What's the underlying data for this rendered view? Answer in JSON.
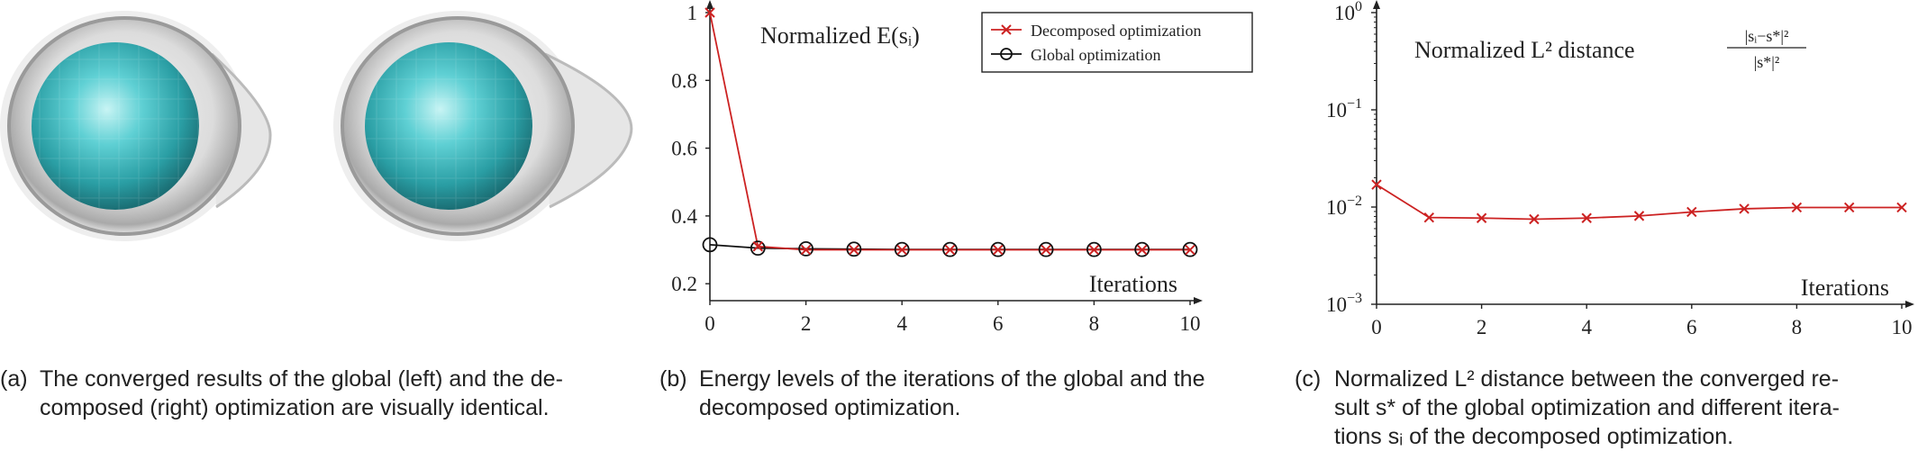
{
  "captions": {
    "a": {
      "label": "(a)",
      "lines": [
        "The converged results of the global (left) and the de-",
        "composed (right) optimization are visually identical."
      ]
    },
    "b": {
      "label": "(b)",
      "lines": [
        "Energy levels of the iterations of the global and the",
        "decomposed optimization."
      ]
    },
    "c": {
      "label": "(c)",
      "lines": [
        "Normalized L² distance between the converged re-",
        "sult s* of the global optimization and different itera-",
        "tions sᵢ of the decomposed optimization."
      ]
    }
  },
  "colors": {
    "decomposed": "#cc2222",
    "global": "#111111",
    "sphere": "#3fbfc4",
    "shell": "#d6d6d6"
  },
  "chart_data": [
    {
      "type": "line",
      "annotation": "Normalized E(sᵢ)",
      "xlabel": "Iterations",
      "x": [
        0,
        1,
        2,
        3,
        4,
        5,
        6,
        7,
        8,
        9,
        10
      ],
      "xticks": [
        "0",
        "2",
        "4",
        "6",
        "8",
        "10"
      ],
      "yticks": [
        "0.2",
        "0.4",
        "0.6",
        "0.8",
        "1"
      ],
      "ylim": [
        0.15,
        1.0
      ],
      "xlim": [
        0,
        10
      ],
      "legend": "top-right",
      "series": [
        {
          "name": "Decomposed optimization",
          "marker": "x",
          "values": [
            1.0,
            0.31,
            0.3,
            0.3,
            0.3,
            0.3,
            0.3,
            0.3,
            0.3,
            0.3,
            0.3
          ]
        },
        {
          "name": "Global optimization",
          "marker": "o",
          "values": [
            0.315,
            0.305,
            0.303,
            0.302,
            0.301,
            0.301,
            0.301,
            0.301,
            0.301,
            0.301,
            0.301
          ]
        }
      ]
    },
    {
      "type": "line",
      "annotation": "Normalized L² distance",
      "annotation_formula_num": "|sᵢ−s*|²",
      "annotation_formula_den": "|s*|²",
      "xlabel": "Iterations",
      "x": [
        0,
        1,
        2,
        3,
        4,
        5,
        6,
        7,
        8,
        9,
        10
      ],
      "xticks": [
        "0",
        "2",
        "4",
        "6",
        "8",
        "10"
      ],
      "yscale": "log",
      "ylim": [
        0.001,
        1
      ],
      "yticks": [
        {
          "base": "10",
          "exp": "0"
        },
        {
          "base": "10",
          "exp": "−1"
        },
        {
          "base": "10",
          "exp": "−2"
        },
        {
          "base": "10",
          "exp": "−3"
        }
      ],
      "series": [
        {
          "marker": "x",
          "values": [
            0.017,
            0.0078,
            0.0077,
            0.0075,
            0.0077,
            0.0081,
            0.0089,
            0.0096,
            0.0099,
            0.0099,
            0.0099
          ]
        }
      ]
    }
  ]
}
